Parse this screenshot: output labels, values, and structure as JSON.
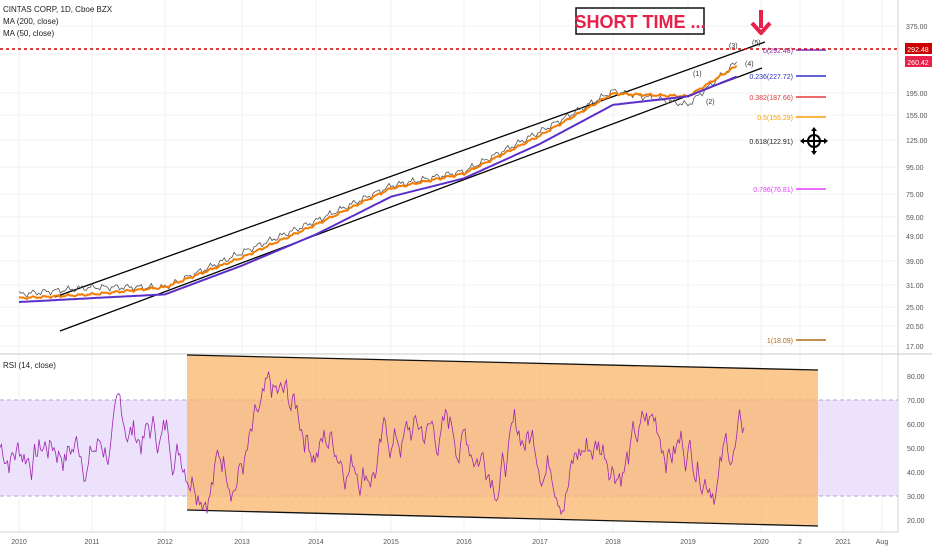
{
  "header": {
    "title": "CINTAS CORP, 1D, Cboe BZX",
    "indicators": [
      "MA (200, close)",
      "MA (50, close)"
    ],
    "rsi_label": "RSI (14, close)"
  },
  "annotation": {
    "text": "SHORT TIME ...",
    "color": "#e8204a"
  },
  "price_scale": {
    "ticks": [
      "375.00",
      "292.48",
      "260.42",
      "195.00",
      "155.00",
      "125.00",
      "95.00",
      "75.00",
      "59.00",
      "49.00",
      "39.00",
      "31.00",
      "25.00",
      "20.50",
      "17.00"
    ],
    "last_price": "260.42",
    "last_price_color": "#e8204a",
    "level_price": "292.48",
    "level_price_color": "#cc0000"
  },
  "rsi_scale": {
    "ticks": [
      "80.00",
      "70.00",
      "60.00",
      "50.00",
      "40.00",
      "30.00",
      "20.00"
    ]
  },
  "time_axis": {
    "labels": [
      "2010",
      "2011",
      "2012",
      "2013",
      "2014",
      "2015",
      "2016",
      "2017",
      "2018",
      "2019",
      "2020",
      "2",
      "2021",
      "Aug"
    ]
  },
  "fib_levels": [
    {
      "label": "0(292.48)",
      "color": "#8e24aa"
    },
    {
      "label": "0.236(227.72)",
      "color": "#3030c8"
    },
    {
      "label": "0.382(187.66)",
      "color": "#e53935"
    },
    {
      "label": "0.5(155.29)",
      "color": "#f59f00"
    },
    {
      "label": "0.618(122.91)",
      "color": "#222222"
    },
    {
      "label": "0.786(76.81)",
      "color": "#e040fb"
    },
    {
      "label": "1(18.09)",
      "color": "#b06b17"
    }
  ],
  "wave_labels": [
    "(1)",
    "(2)",
    "(3)",
    "(4)",
    "(5)"
  ],
  "colors": {
    "price": "#555555",
    "ma50": "#f57c00",
    "ma200": "#5b2fc9",
    "rsi": "#9c27b0",
    "rsi_band": "#ede2fb",
    "rsi_channel_fill": "#f9b56b",
    "channel": "#000000"
  },
  "chart_data": {
    "type": "line",
    "log_scale": true,
    "x": [
      "2010",
      "2011",
      "2012",
      "2013",
      "2014",
      "2015",
      "2016",
      "2017",
      "2018",
      "2019",
      "2019-09"
    ],
    "series": [
      {
        "values": [
          28,
          30,
          30,
          42,
          57,
          80,
          92,
          135,
          200,
          175,
          265
        ]
      },
      {
        "values": [
          27,
          28,
          30,
          40,
          55,
          78,
          90,
          130,
          195,
          190,
          255
        ]
      },
      {
        "values": [
          26,
          27,
          28,
          37,
          50,
          72,
          86,
          120,
          175,
          190,
          230
        ]
      }
    ],
    "rsi_range": [
      20,
      80
    ],
    "rsi_bands": [
      30,
      70
    ],
    "grid": true
  }
}
